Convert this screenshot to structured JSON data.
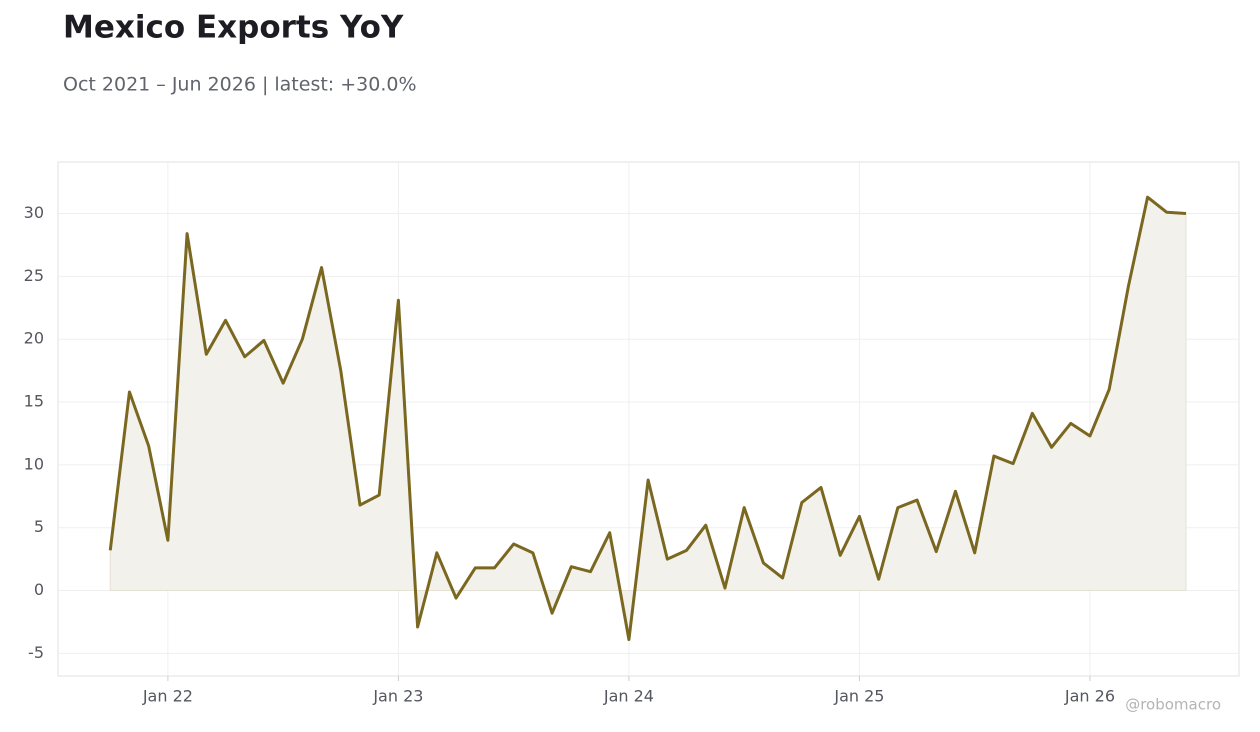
{
  "chart_data": {
    "type": "line",
    "title": "Mexico Exports YoY",
    "subtitle": "Oct 2021 – Jun 2026 | latest: +30.0%",
    "watermark": "@robomacro",
    "x": [
      "2021-10",
      "2021-11",
      "2021-12",
      "2022-01",
      "2022-02",
      "2022-03",
      "2022-04",
      "2022-05",
      "2022-06",
      "2022-07",
      "2022-08",
      "2022-09",
      "2022-10",
      "2022-11",
      "2022-12",
      "2023-01",
      "2023-02",
      "2023-03",
      "2023-04",
      "2023-05",
      "2023-06",
      "2023-07",
      "2023-08",
      "2023-09",
      "2023-10",
      "2023-11",
      "2023-12",
      "2024-01",
      "2024-02",
      "2024-03",
      "2024-04",
      "2024-05",
      "2024-06",
      "2024-07",
      "2024-08",
      "2024-09",
      "2024-10",
      "2024-11",
      "2024-12",
      "2025-01",
      "2025-02",
      "2025-03",
      "2025-04",
      "2025-05",
      "2025-06",
      "2025-07",
      "2025-08",
      "2025-09",
      "2025-10",
      "2025-11",
      "2025-12",
      "2026-01",
      "2026-02",
      "2026-03",
      "2026-04",
      "2026-05",
      "2026-06"
    ],
    "values": [
      3.2,
      15.8,
      11.5,
      4.0,
      28.4,
      18.8,
      21.5,
      18.6,
      19.9,
      16.5,
      20.0,
      25.7,
      17.5,
      6.8,
      7.6,
      23.1,
      -2.9,
      3.0,
      -0.6,
      1.8,
      1.8,
      3.7,
      3.0,
      -1.8,
      1.9,
      1.5,
      4.6,
      -3.9,
      8.8,
      2.5,
      3.2,
      5.2,
      0.2,
      6.6,
      2.2,
      1.0,
      7.0,
      8.2,
      2.8,
      5.9,
      0.9,
      6.6,
      7.2,
      3.1,
      7.9,
      3.0,
      10.7,
      10.1,
      14.1,
      11.4,
      13.3,
      12.3,
      16.0,
      24.2,
      31.3,
      30.1,
      30.0
    ],
    "color": "#7a6720",
    "area": true,
    "area_color": "#f3f1ec",
    "ylim": [
      -6.8,
      34.1
    ],
    "yticks": [
      -5,
      0,
      5,
      10,
      15,
      20,
      25,
      30
    ],
    "xticks": [
      {
        "value": "2022-01",
        "label": "Jan 22"
      },
      {
        "value": "2023-01",
        "label": "Jan 23"
      },
      {
        "value": "2024-01",
        "label": "Jan 24"
      },
      {
        "value": "2025-01",
        "label": "Jan 25"
      },
      {
        "value": "2026-01",
        "label": "Jan 26"
      }
    ],
    "grid": true
  }
}
